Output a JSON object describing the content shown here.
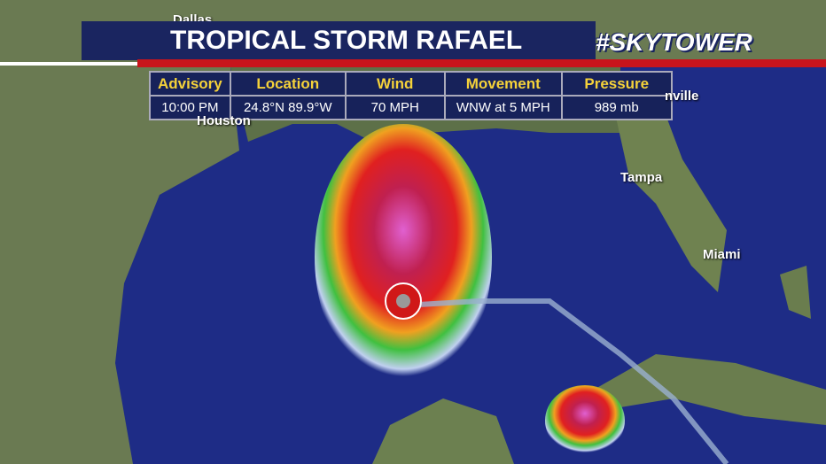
{
  "header": {
    "title": "TROPICAL STORM RAFAEL",
    "logo": "#SKYTOWER"
  },
  "table": {
    "headers": [
      "Advisory",
      "Location",
      "Wind",
      "Movement",
      "Pressure"
    ],
    "values": [
      "10:00 PM",
      "24.8°N  89.9°W",
      "70 MPH",
      "WNW at 5 MPH",
      "989 mb"
    ]
  },
  "cities": [
    "Dallas",
    "Houston",
    "nville",
    "Tampa",
    "Miami"
  ]
}
